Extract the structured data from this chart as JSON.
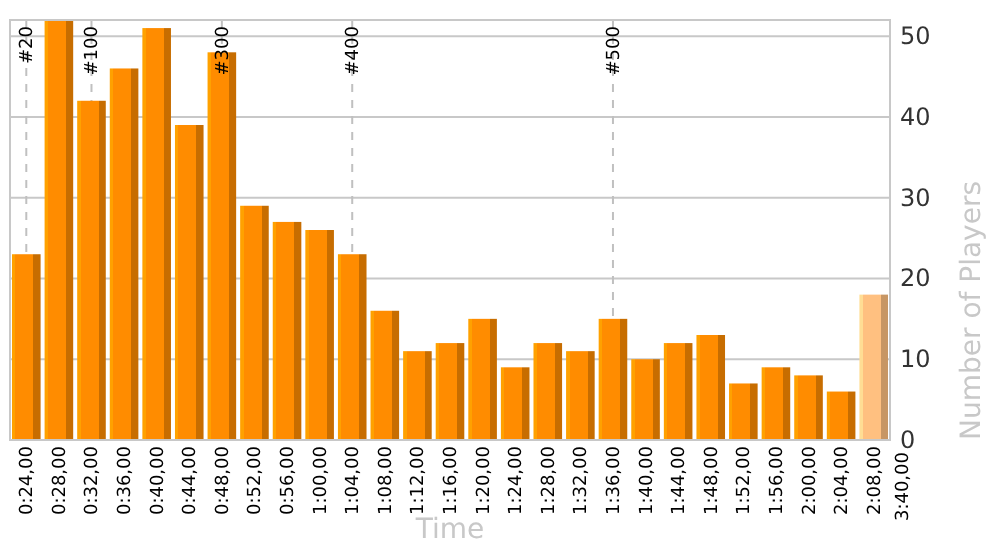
{
  "chart_data": {
    "type": "bar",
    "xlabel": "Time",
    "ylabel": "Number of Players",
    "categories": [
      "0:24,00",
      "0:28,00",
      "0:32,00",
      "0:36,00",
      "0:40,00",
      "0:44,00",
      "0:48,00",
      "0:52,00",
      "0:56,00",
      "1:00,00",
      "1:04,00",
      "1:08,00",
      "1:12,00",
      "1:16,00",
      "1:20,00",
      "1:24,00",
      "1:28,00",
      "1:32,00",
      "1:36,00",
      "1:40,00",
      "1:44,00",
      "1:48,00",
      "1:52,00",
      "1:56,00",
      "2:00,00",
      "2:04,00",
      "2:08,00"
    ],
    "values": [
      23,
      52,
      42,
      46,
      51,
      39,
      48,
      29,
      27,
      26,
      23,
      16,
      11,
      12,
      15,
      9,
      12,
      11,
      15,
      10,
      12,
      13,
      7,
      9,
      8,
      6,
      18
    ],
    "colors": [
      "#ff8c00",
      "#ff8c00",
      "#ff8c00",
      "#ff8c00",
      "#ff8c00",
      "#ff8c00",
      "#ff8c00",
      "#ff8c00",
      "#ff8c00",
      "#ff8c00",
      "#ff8c00",
      "#ff8c00",
      "#ff8c00",
      "#ff8c00",
      "#ff8c00",
      "#ff8c00",
      "#ff8c00",
      "#ff8c00",
      "#ff8c00",
      "#ff8c00",
      "#ff8c00",
      "#ff8c00",
      "#ff8c00",
      "#ff8c00",
      "#ff8c00",
      "#ff8c00",
      "#ffc080"
    ],
    "annotations": [
      "3:40,00"
    ],
    "ylim": [
      0,
      52
    ],
    "yticks": [
      0,
      10,
      20,
      30,
      40,
      50
    ],
    "grid": "y",
    "ref_lines": [
      {
        "axis": "x",
        "value": "0:24,00",
        "label": "#20",
        "color": "#c0c0c0",
        "line_style": "dashed"
      },
      {
        "axis": "x",
        "value": "0:32,00",
        "label": "#100",
        "color": "#c0c0c0",
        "line_style": "dashed"
      },
      {
        "axis": "x",
        "value": "0:48,00",
        "label": "#300",
        "color": "#c0c0c0",
        "line_style": "dashed"
      },
      {
        "axis": "x",
        "value": "1:04,00",
        "label": "#400",
        "color": "#c0c0c0",
        "line_style": "dashed"
      },
      {
        "axis": "x",
        "value": "1:36,00",
        "label": "#500",
        "color": "#c0c0c0",
        "line_style": "dashed"
      }
    ]
  }
}
